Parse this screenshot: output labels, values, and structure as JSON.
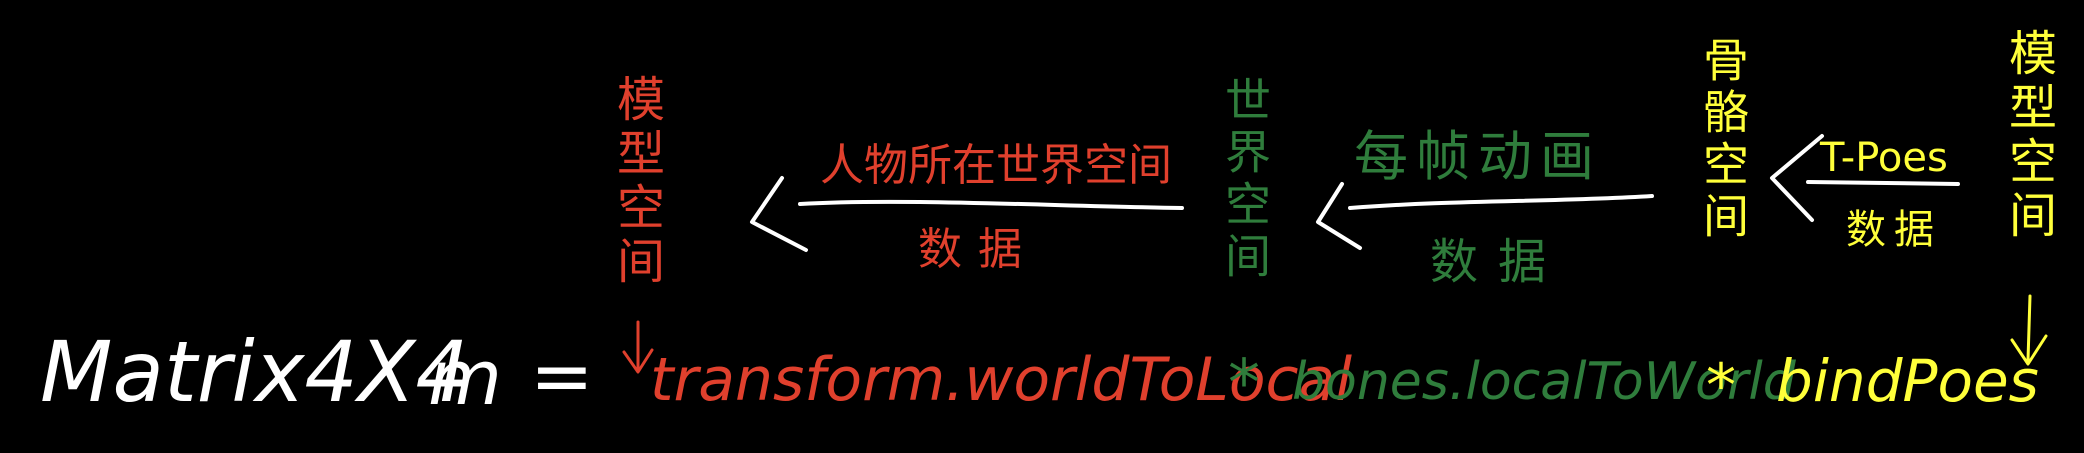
{
  "colors": {
    "background": "#000000",
    "white": "#ffffff",
    "red": "#e0402d",
    "green": "#2f7d3c",
    "yellow": "#ffff3a"
  },
  "formula": {
    "lhs": "Matrix4X4",
    "var": "m",
    "equals": "=",
    "term1": "transform.worldToLocal",
    "op1": "*",
    "term2": "bones.localToWorld",
    "op2": "*",
    "term3": "bindPoes"
  },
  "red_group": {
    "vertical": "模型空间",
    "top": "人物所在世界空间",
    "bottom": "数据"
  },
  "green_group": {
    "vertical": "世界空间",
    "top": "每帧动画",
    "bottom": "数据"
  },
  "yellow_group": {
    "vertical_left": "骨骼空间",
    "top": "T-Poes",
    "bottom": "数据",
    "vertical_right": "模型空间"
  }
}
